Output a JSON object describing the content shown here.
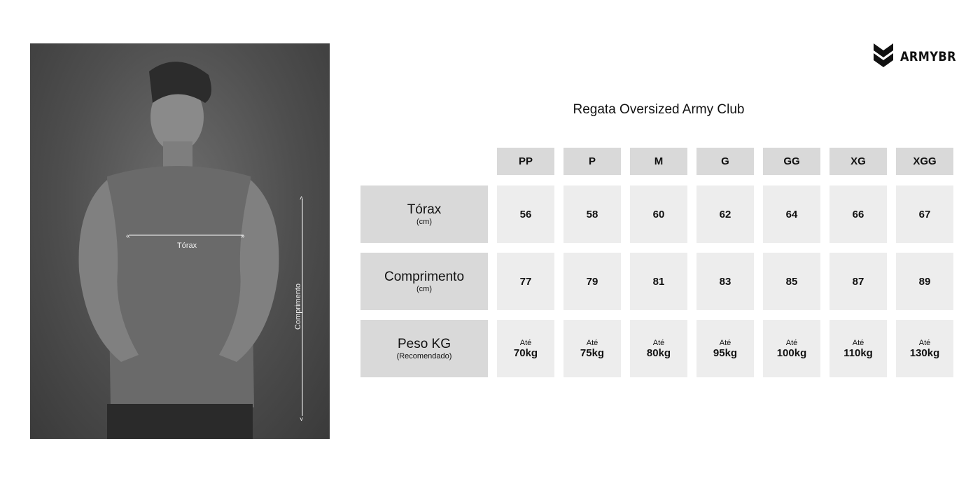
{
  "brand": {
    "name": "ARMYBR"
  },
  "product_title": "Regata Oversized Army Club",
  "photo": {
    "chest_label": "Tórax",
    "length_label": "Comprimento"
  },
  "table": {
    "sizes": [
      "PP",
      "P",
      "M",
      "G",
      "GG",
      "XG",
      "XGG"
    ],
    "rows": [
      {
        "label": "Tórax",
        "unit": "(cm)",
        "values": [
          {
            "v": "56"
          },
          {
            "v": "58"
          },
          {
            "v": "60"
          },
          {
            "v": "62"
          },
          {
            "v": "64"
          },
          {
            "v": "66"
          },
          {
            "v": "67"
          }
        ]
      },
      {
        "label": "Comprimento",
        "unit": "(cm)",
        "values": [
          {
            "v": "77"
          },
          {
            "v": "79"
          },
          {
            "v": "81"
          },
          {
            "v": "83"
          },
          {
            "v": "85"
          },
          {
            "v": "87"
          },
          {
            "v": "89"
          }
        ]
      },
      {
        "label": "Peso KG",
        "unit": "(Recomendado)",
        "values": [
          {
            "p": "Até",
            "v": "70kg"
          },
          {
            "p": "Até",
            "v": "75kg"
          },
          {
            "p": "Até",
            "v": "80kg"
          },
          {
            "p": "Até",
            "v": "95kg"
          },
          {
            "p": "Até",
            "v": "100kg"
          },
          {
            "p": "Até",
            "v": "110kg"
          },
          {
            "p": "Até",
            "v": "130kg"
          }
        ]
      }
    ]
  }
}
